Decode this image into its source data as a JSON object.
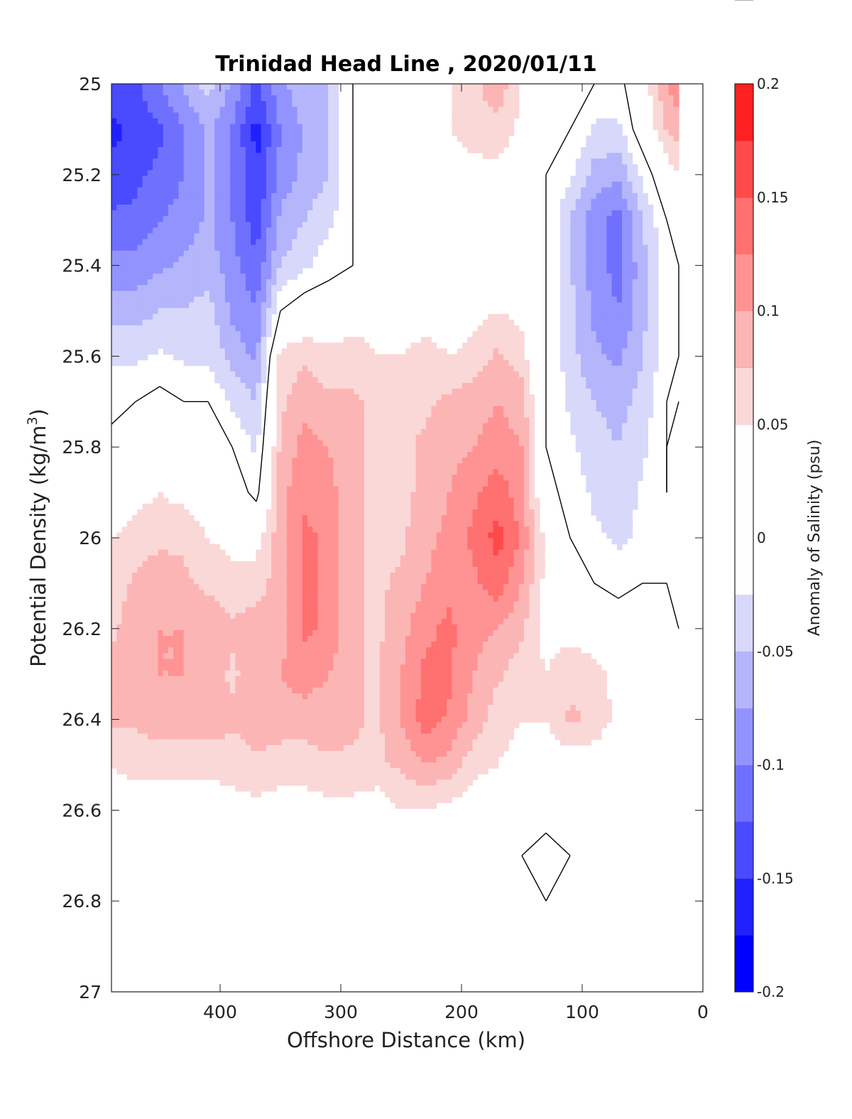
{
  "chart_data": {
    "type": "heatmap",
    "subtype": "filled-contour",
    "title": "Trinidad Head Line , 2020/01/11",
    "xlabel": "Offshore Distance (km)",
    "ylabel_main": "Potential Density (kg/m",
    "ylabel_sup": "3",
    "ylabel_end": ")",
    "xlim": [
      490,
      0
    ],
    "ylim": [
      25,
      27
    ],
    "x_reversed": true,
    "y_reversed": true,
    "xticks": [
      400,
      300,
      200,
      100,
      0
    ],
    "xtick_labels": [
      "400",
      "300",
      "200",
      "100",
      "0"
    ],
    "yticks": [
      25,
      25.2,
      25.4,
      25.6,
      25.8,
      26,
      26.2,
      26.4,
      26.6,
      26.8,
      27
    ],
    "ytick_labels": [
      "25",
      "25.2",
      "25.4",
      "25.6",
      "25.8",
      "26",
      "26.2",
      "26.4",
      "26.6",
      "26.8",
      "27"
    ],
    "data_bottom_limit": 26.9,
    "x_samples": [
      490,
      470,
      450,
      430,
      410,
      390,
      370,
      350,
      330,
      310,
      290,
      270,
      250,
      230,
      210,
      190,
      170,
      150,
      130,
      110,
      90,
      70,
      50,
      30,
      20
    ],
    "y_samples": [
      25.0,
      25.1,
      25.2,
      25.3,
      25.4,
      25.5,
      25.6,
      25.7,
      25.8,
      25.9,
      26.0,
      26.1,
      26.2,
      26.3,
      26.4,
      26.5,
      26.6,
      26.7,
      26.8,
      26.9
    ],
    "salinity_anomaly_psu": [
      [
        -0.13,
        -0.13,
        -0.1,
        -0.07,
        -0.04,
        -0.08,
        -0.13,
        -0.08,
        -0.06,
        -0.05,
        0.0,
        0.04,
        0.05,
        0.04,
        0.05,
        0.07,
        0.09,
        0.05,
        0.0,
        0.0,
        0.0,
        -0.01,
        0.03,
        0.1,
        0.12
      ],
      [
        -0.16,
        -0.14,
        -0.13,
        -0.1,
        -0.07,
        -0.1,
        -0.16,
        -0.1,
        -0.07,
        -0.05,
        0.0,
        0.03,
        0.04,
        0.05,
        0.05,
        0.06,
        0.07,
        0.04,
        0.0,
        0.0,
        -0.03,
        -0.03,
        0.02,
        0.08,
        0.09
      ],
      [
        -0.14,
        -0.13,
        -0.12,
        -0.1,
        -0.07,
        -0.1,
        -0.15,
        -0.09,
        -0.07,
        -0.05,
        0.0,
        0.02,
        0.04,
        0.04,
        0.04,
        0.04,
        0.04,
        0.02,
        0.0,
        -0.02,
        -0.06,
        -0.07,
        -0.02,
        0.03,
        0.05
      ],
      [
        -0.12,
        -0.12,
        -0.1,
        -0.09,
        -0.07,
        -0.1,
        -0.14,
        -0.07,
        -0.05,
        -0.03,
        0.0,
        0.02,
        0.02,
        0.02,
        0.0,
        0.02,
        0.02,
        0.01,
        0.0,
        -0.05,
        -0.09,
        -0.11,
        -0.05,
        0.0,
        0.02
      ],
      [
        -0.09,
        -0.09,
        -0.08,
        -0.07,
        -0.06,
        -0.09,
        -0.12,
        -0.05,
        -0.03,
        -0.01,
        0.0,
        0.01,
        0.02,
        0.02,
        0.02,
        0.03,
        0.02,
        0.01,
        0.0,
        -0.05,
        -0.09,
        -0.11,
        -0.06,
        -0.01,
        0.0
      ],
      [
        -0.06,
        -0.06,
        -0.05,
        -0.05,
        -0.04,
        -0.08,
        -0.1,
        0.0,
        0.02,
        0.02,
        0.04,
        0.04,
        0.03,
        0.04,
        0.03,
        0.04,
        0.05,
        0.04,
        0.0,
        -0.04,
        -0.08,
        -0.1,
        -0.06,
        -0.01,
        0.0
      ],
      [
        -0.03,
        -0.03,
        -0.02,
        -0.03,
        -0.03,
        -0.06,
        -0.08,
        0.06,
        0.07,
        0.06,
        0.06,
        0.05,
        0.05,
        0.06,
        0.05,
        0.06,
        0.08,
        0.06,
        0.0,
        -0.04,
        -0.07,
        -0.08,
        -0.05,
        -0.01,
        0.0
      ],
      [
        -0.01,
        0.0,
        0.01,
        0.0,
        0.0,
        -0.03,
        -0.05,
        0.07,
        0.09,
        0.08,
        0.08,
        0.07,
        0.06,
        0.07,
        0.08,
        0.09,
        0.1,
        0.09,
        0.0,
        -0.03,
        -0.05,
        -0.06,
        -0.04,
        0.0,
        0.0
      ],
      [
        0.01,
        0.02,
        0.03,
        0.02,
        0.02,
        0.0,
        -0.03,
        0.08,
        0.11,
        0.1,
        0.08,
        0.07,
        0.07,
        0.08,
        0.09,
        0.1,
        0.11,
        0.1,
        0.0,
        -0.02,
        -0.04,
        -0.05,
        -0.03,
        0.0,
        -0.01
      ],
      [
        0.03,
        0.04,
        0.05,
        0.04,
        0.03,
        0.02,
        -0.01,
        0.09,
        0.12,
        0.11,
        0.08,
        0.07,
        0.07,
        0.08,
        0.1,
        0.12,
        0.14,
        0.11,
        0.01,
        -0.01,
        -0.03,
        -0.04,
        -0.02,
        0.0,
        -0.01
      ],
      [
        0.05,
        0.06,
        0.07,
        0.07,
        0.05,
        0.04,
        0.04,
        0.09,
        0.13,
        0.12,
        0.08,
        0.07,
        0.07,
        0.09,
        0.11,
        0.13,
        0.16,
        0.12,
        0.04,
        0.0,
        -0.02,
        -0.03,
        -0.02,
        -0.01,
        -0.02
      ],
      [
        0.06,
        0.08,
        0.09,
        0.08,
        0.07,
        0.06,
        0.06,
        0.09,
        0.13,
        0.12,
        0.08,
        0.07,
        0.08,
        0.1,
        0.12,
        0.12,
        0.14,
        0.1,
        0.04,
        0.02,
        0.0,
        -0.01,
        0.0,
        0.0,
        -0.01
      ],
      [
        0.07,
        0.09,
        0.1,
        0.1,
        0.09,
        0.08,
        0.09,
        0.09,
        0.13,
        0.12,
        0.08,
        0.07,
        0.09,
        0.12,
        0.13,
        0.11,
        0.1,
        0.08,
        0.04,
        0.04,
        0.03,
        0.02,
        0.01,
        0.0,
        0.0
      ],
      [
        0.08,
        0.09,
        0.1,
        0.1,
        0.09,
        0.07,
        0.09,
        0.1,
        0.11,
        0.1,
        0.08,
        0.07,
        0.1,
        0.13,
        0.13,
        0.1,
        0.08,
        0.06,
        0.05,
        0.07,
        0.06,
        0.04,
        0.02,
        0.0,
        0.0
      ],
      [
        0.08,
        0.08,
        0.09,
        0.09,
        0.09,
        0.08,
        0.09,
        0.09,
        0.09,
        0.09,
        0.08,
        0.07,
        0.1,
        0.14,
        0.12,
        0.09,
        0.06,
        0.05,
        0.05,
        0.08,
        0.07,
        0.04,
        0.02,
        0.0,
        0.0
      ],
      [
        0.05,
        0.06,
        0.06,
        0.06,
        0.06,
        0.06,
        0.07,
        0.06,
        0.06,
        0.07,
        0.07,
        0.07,
        0.08,
        0.1,
        0.09,
        0.06,
        0.05,
        0.04,
        0.03,
        0.03,
        0.03,
        0.02,
        0.01,
        0.01,
        0.0
      ],
      [
        0.03,
        0.03,
        0.03,
        0.03,
        0.03,
        0.04,
        0.04,
        0.04,
        0.04,
        0.04,
        0.04,
        0.03,
        0.05,
        0.05,
        0.04,
        0.03,
        0.02,
        0.01,
        0.01,
        0.0,
        0.0,
        0.0,
        0.01,
        0.02,
        0.0
      ],
      [
        0.0,
        0.0,
        0.03,
        0.02,
        0.02,
        0.0,
        0.0,
        0.0,
        0.01,
        0.0,
        0.0,
        0.0,
        0.01,
        0.01,
        0.0,
        0.0,
        0.0,
        0.0,
        -0.01,
        0.0,
        0.0,
        0.0,
        0.02,
        0.03,
        0.0
      ],
      [
        0.0,
        0.0,
        0.03,
        0.03,
        0.03,
        0.0,
        0.0,
        0.0,
        0.02,
        0.02,
        0.0,
        0.0,
        0.0,
        0.0,
        0.0,
        0.0,
        0.0,
        0.0,
        0.0,
        0.0,
        0.0,
        0.0,
        0.02,
        0.03,
        0.0
      ],
      [
        0.0,
        0.0,
        0.03,
        0.03,
        0.03,
        0.0,
        0.0,
        0.0,
        0.03,
        0.0,
        0.0,
        0.0,
        0.0,
        0.0,
        0.0,
        0.0,
        0.0,
        0.0,
        0.0,
        0.0,
        0.0,
        0.0,
        0.0,
        0.03,
        0.0
      ]
    ],
    "contour_levels": [
      -0.2,
      -0.175,
      -0.15,
      -0.125,
      -0.1,
      -0.075,
      -0.05,
      -0.025,
      0.025,
      0.05,
      0.075,
      0.1,
      0.125,
      0.15,
      0.175,
      0.2
    ],
    "zero_contour_color": "#000000",
    "colorbar": {
      "label": "Anomaly of Salinity (psu)",
      "range": [
        -0.2,
        0.2
      ],
      "ticks": [
        -0.2,
        -0.15,
        -0.1,
        -0.05,
        0,
        0.05,
        0.1,
        0.15,
        0.2
      ],
      "tick_labels": [
        "-0.2",
        "-0.15",
        "-0.1",
        "-0.05",
        "0",
        "0.05",
        "0.1",
        "0.15",
        "0.2"
      ],
      "colors": [
        "#0000ff",
        "#2020ff",
        "#4a4aff",
        "#7070ff",
        "#9393ff",
        "#b5b5fc",
        "#d8d8fb",
        "#ffffff",
        "#ffffff",
        "#fbd8d8",
        "#fcb5b5",
        "#ff9393",
        "#ff7070",
        "#ff4a4a",
        "#ff2020",
        "#ff0000"
      ]
    }
  }
}
